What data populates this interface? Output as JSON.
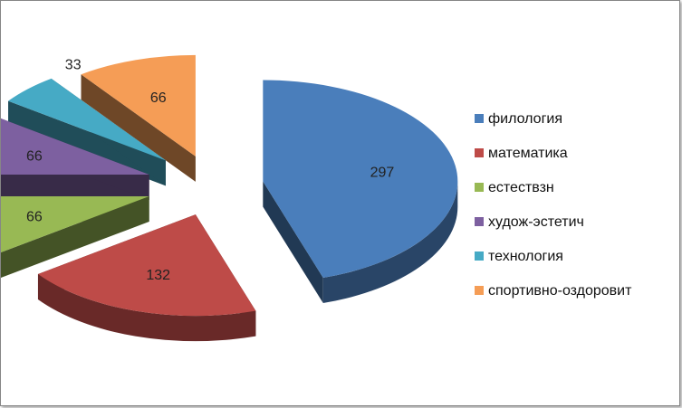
{
  "chart_data": {
    "type": "pie",
    "style": "3d-exploded",
    "categories": [
      "филология",
      "математика",
      "естествзн",
      "худож-эстетич",
      "технология",
      "спортивно-оздоровит"
    ],
    "values": [
      297,
      132,
      66,
      66,
      33,
      66
    ],
    "data_labels": [
      "297",
      "132",
      "66",
      "66",
      "33",
      "66"
    ],
    "colors": [
      "#4A7EBB",
      "#BE4B48",
      "#98B954",
      "#7D60A0",
      "#46AAC5",
      "#F59D56"
    ],
    "legend_position": "right",
    "title": ""
  }
}
